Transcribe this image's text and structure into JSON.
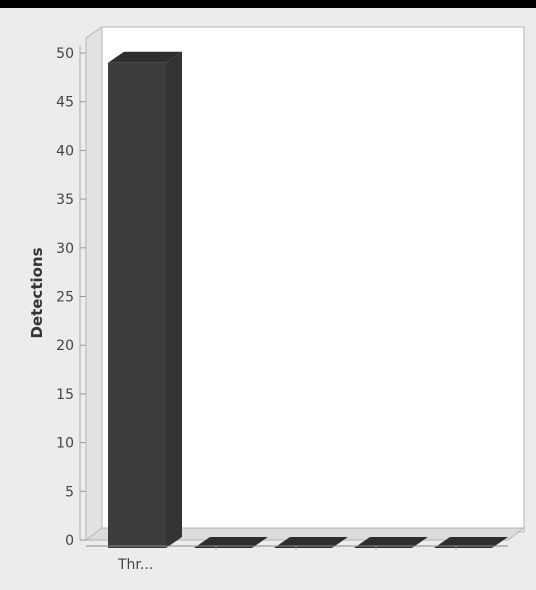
{
  "chart_data": {
    "type": "bar",
    "categories": [
      "Thr..."
    ],
    "values": [
      49
    ],
    "ylabel": "Detections",
    "ylim": [
      0,
      50
    ],
    "yticks": [
      0,
      5,
      10,
      15,
      20,
      25,
      30,
      35,
      40,
      45,
      50
    ],
    "grid": false,
    "legend": "none",
    "style": "3d",
    "colors": {
      "bar": "#3d3d3d",
      "bar_top": "#2e2e2e",
      "bar_side": "#333333",
      "plot_background": "#ffffff",
      "page_background": "#ececec",
      "axis": "#888888",
      "tick_label": "#444444"
    }
  }
}
